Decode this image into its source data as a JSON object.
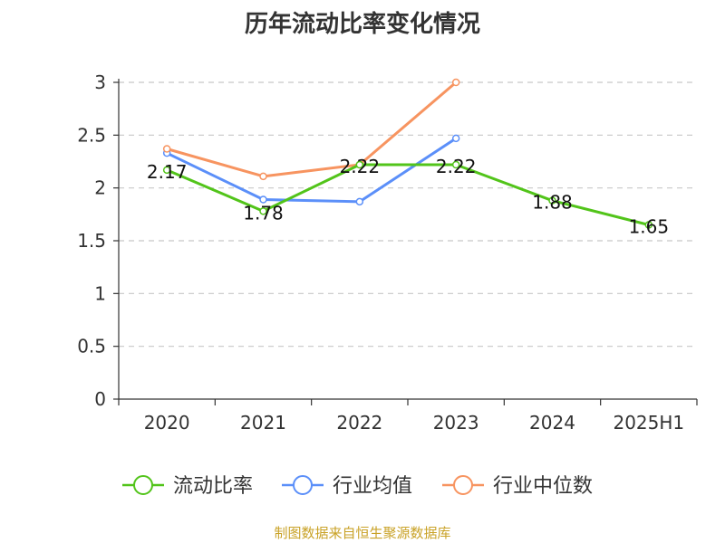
{
  "chart_data": {
    "type": "line",
    "title": "历年流动比率变化情况",
    "categories": [
      "2020",
      "2021",
      "2022",
      "2023",
      "2024",
      "2025H1"
    ],
    "ylim": [
      0,
      3
    ],
    "yticks": [
      "0",
      "0.5",
      "1",
      "1.5",
      "2",
      "2.5",
      "3"
    ],
    "grid": true,
    "legend_position": "bottom",
    "series": [
      {
        "name": "流动比率",
        "color": "#52c41a",
        "values": [
          2.17,
          1.78,
          2.22,
          2.22,
          1.88,
          1.65
        ],
        "labels": [
          "2.17",
          "1.78",
          "2.22",
          "2.22",
          "1.88",
          "1.65"
        ]
      },
      {
        "name": "行业均值",
        "color": "#5b8ff9",
        "values": [
          2.33,
          1.89,
          1.87,
          2.47,
          null,
          null
        ]
      },
      {
        "name": "行业中位数",
        "color": "#f79460",
        "values": [
          2.37,
          2.11,
          2.22,
          3.0,
          null,
          null
        ]
      }
    ]
  },
  "source_text": "制图数据来自恒生聚源数据库",
  "source_color": "#c9a227"
}
